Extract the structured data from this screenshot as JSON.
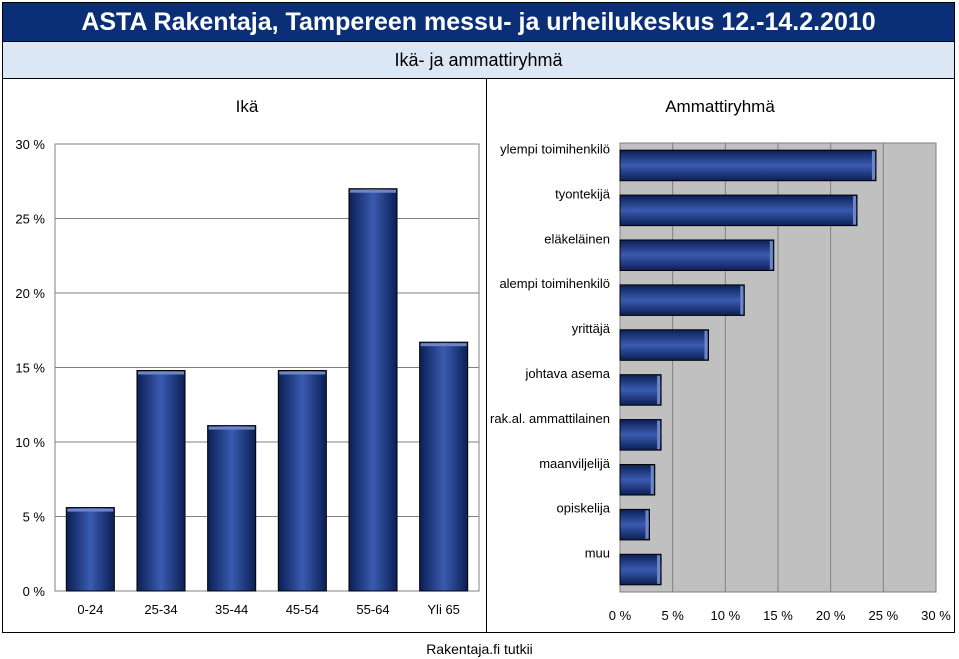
{
  "header": {
    "title": "ASTA Rakentaja, Tampereen messu- ja urheilukeskus 12.-14.2.2010",
    "subtitle": "Ikä- ja ammattiryhmä"
  },
  "footer": {
    "source": "Rakentaja.fi tutkii"
  },
  "colors": {
    "bar": "#102a6e",
    "bar_highlight": "#3a5bb0",
    "plot_bg_right": "#c0c0c0",
    "header_bg": "#0a2f77",
    "subheader_bg": "#dbe7f5"
  },
  "chart_data": [
    {
      "type": "bar",
      "title": "Ikä",
      "categories": [
        "0-24",
        "25-34",
        "35-44",
        "45-54",
        "55-64",
        "Yli 65"
      ],
      "values": [
        5.6,
        14.8,
        11.1,
        14.8,
        27.0,
        16.7
      ],
      "ylim": [
        0,
        30
      ],
      "yticks": [
        "0 %",
        "5 %",
        "10 %",
        "15 %",
        "20 %",
        "25 %",
        "30 %"
      ],
      "grid": true,
      "xlabel": "",
      "ylabel": ""
    },
    {
      "type": "bar",
      "orientation": "horizontal",
      "title": "Ammattiryhmä",
      "categories": [
        "ylempi toimihenkilö",
        "tyontekijä",
        "eläkeläinen",
        "alempi toimihenkilö",
        "yrittäjä",
        "johtava asema",
        "rak.al. ammattilainen",
        "maanviljelijä",
        "opiskelija",
        "muu"
      ],
      "values": [
        24.3,
        22.5,
        14.6,
        11.8,
        8.4,
        3.9,
        3.9,
        3.3,
        2.8,
        3.9
      ],
      "xlim": [
        0,
        30
      ],
      "xticks": [
        "0 %",
        "5 %",
        "10 %",
        "15 %",
        "20 %",
        "25 %",
        "30 %"
      ],
      "grid": true,
      "xlabel": "",
      "ylabel": ""
    }
  ]
}
